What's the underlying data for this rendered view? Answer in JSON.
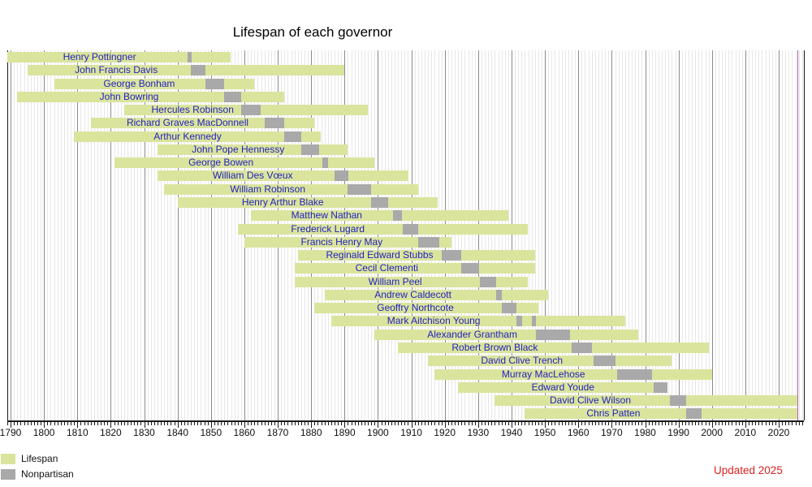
{
  "chart_data": {
    "type": "bar",
    "subtype": "timeline-lifespan-gantt",
    "title": "Lifespan of each governor",
    "updated_note": "Updated 2025",
    "axis": {
      "label_start": 1790,
      "label_end": 2020,
      "major_step": 10,
      "minor_step": 1,
      "plot_start": 1789,
      "plot_end": 2027.5,
      "grid": true
    },
    "now_line_year": 2025.5,
    "legend": [
      {
        "label": "Lifespan",
        "color": "#dbe49d"
      },
      {
        "label": "Nonpartisan",
        "color": "#a9a9a9"
      }
    ],
    "colors": {
      "lifespan_bar": "#dbe49d",
      "term_segment": "#a9a9a9",
      "name_text": "#2222bf",
      "major_grid": "#8a8a8a",
      "minor_grid": "#e7e7e7",
      "axis": "#1a1a1a",
      "now_line": "#b060b0",
      "updated_text": "#dd2222",
      "title_text": "#000000"
    },
    "governors": [
      {
        "name": "Henry Pottingner",
        "birth": 1789,
        "death": 1856,
        "terms": [
          [
            1843,
            1844.3
          ]
        ]
      },
      {
        "name": "John Francis Davis",
        "birth": 1795,
        "death": 1890,
        "terms": [
          [
            1844,
            1848.3
          ]
        ]
      },
      {
        "name": "George Bonham",
        "birth": 1803,
        "death": 1863,
        "terms": [
          [
            1848.3,
            1854
          ]
        ]
      },
      {
        "name": "John Bowring",
        "birth": 1792,
        "death": 1872,
        "terms": [
          [
            1854,
            1859
          ]
        ]
      },
      {
        "name": "Hercules Robinson",
        "birth": 1824,
        "death": 1897,
        "terms": [
          [
            1859,
            1865
          ]
        ]
      },
      {
        "name": "Richard Graves MacDonnell",
        "birth": 1814,
        "death": 1881,
        "terms": [
          [
            1866,
            1872
          ]
        ]
      },
      {
        "name": "Arthur Kennedy",
        "birth": 1809,
        "death": 1883,
        "terms": [
          [
            1872,
            1877
          ]
        ]
      },
      {
        "name": "John Pope Hennessy",
        "birth": 1834,
        "death": 1891,
        "terms": [
          [
            1877,
            1882.3
          ]
        ]
      },
      {
        "name": "George Bowen",
        "birth": 1821,
        "death": 1899,
        "terms": [
          [
            1883.3,
            1885
          ]
        ]
      },
      {
        "name": "William Des Vœux",
        "birth": 1834,
        "death": 1909,
        "terms": [
          [
            1887,
            1891
          ]
        ]
      },
      {
        "name": "William Robinson",
        "birth": 1836,
        "death": 1912,
        "terms": [
          [
            1891,
            1898
          ]
        ]
      },
      {
        "name": "Henry Arthur Blake",
        "birth": 1840,
        "death": 1918,
        "terms": [
          [
            1898,
            1903
          ]
        ]
      },
      {
        "name": "Matthew Nathan",
        "birth": 1862,
        "death": 1939,
        "terms": [
          [
            1904.5,
            1907.3
          ]
        ]
      },
      {
        "name": "Frederick Lugard",
        "birth": 1858,
        "death": 1945,
        "terms": [
          [
            1907.3,
            1912
          ]
        ]
      },
      {
        "name": "Francis Henry May",
        "birth": 1860,
        "death": 1922,
        "terms": [
          [
            1912,
            1918.3
          ]
        ]
      },
      {
        "name": "Reginald Edward Stubbs",
        "birth": 1876,
        "death": 1947,
        "terms": [
          [
            1919,
            1925
          ]
        ]
      },
      {
        "name": "Cecil Clementi",
        "birth": 1875,
        "death": 1947,
        "terms": [
          [
            1925,
            1930.3
          ]
        ]
      },
      {
        "name": "William Peel",
        "birth": 1875,
        "death": 1945,
        "terms": [
          [
            1930.4,
            1935.3
          ]
        ]
      },
      {
        "name": "Andrew Caldecott",
        "birth": 1884,
        "death": 1951,
        "terms": [
          [
            1935.4,
            1937
          ]
        ]
      },
      {
        "name": "Geoffry Northcote",
        "birth": 1881,
        "death": 1948,
        "terms": [
          [
            1937.1,
            1941.4
          ]
        ]
      },
      {
        "name": "Mark Aitchison Young",
        "birth": 1886,
        "death": 1974,
        "terms": [
          [
            1941.5,
            1943.2
          ],
          [
            1946,
            1947.4
          ]
        ]
      },
      {
        "name": "Alexander Grantham",
        "birth": 1899,
        "death": 1978,
        "terms": [
          [
            1947.4,
            1957.5
          ]
        ]
      },
      {
        "name": "Robert Brown Black",
        "birth": 1906,
        "death": 1999,
        "terms": [
          [
            1958,
            1964
          ]
        ]
      },
      {
        "name": "David Clive Trench",
        "birth": 1915,
        "death": 1988,
        "terms": [
          [
            1964.5,
            1971.2
          ]
        ]
      },
      {
        "name": "Murray MacLehose",
        "birth": 1917,
        "death": 2000,
        "terms": [
          [
            1971.5,
            1982.1
          ]
        ]
      },
      {
        "name": "Edward Youde",
        "birth": 1924,
        "death": 1986.8,
        "terms": [
          [
            1982.5,
            1986.8
          ]
        ]
      },
      {
        "name": "David Clive Wilson",
        "birth": 1935,
        "death": null,
        "terms": [
          [
            1987.5,
            1992.2
          ]
        ]
      },
      {
        "name": "Chris Patten",
        "birth": 1944,
        "death": null,
        "terms": [
          [
            1992.3,
            1997
          ]
        ]
      }
    ],
    "x_tick_labels": [
      "1790",
      "1800",
      "1810",
      "1820",
      "1830",
      "1840",
      "1850",
      "1860",
      "1870",
      "1880",
      "1890",
      "1900",
      "1910",
      "1920",
      "1930",
      "1940",
      "1950",
      "1960",
      "1970",
      "1980",
      "1990",
      "2000",
      "2010",
      "2020"
    ]
  }
}
